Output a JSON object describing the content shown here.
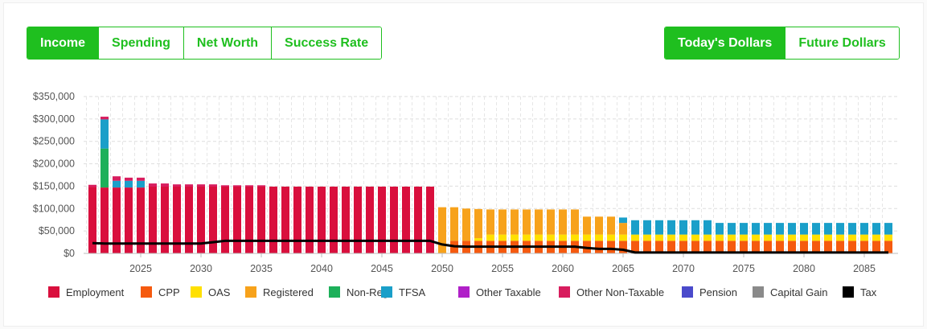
{
  "view_tabs": [
    {
      "label": "Income",
      "active": true
    },
    {
      "label": "Spending",
      "active": false
    },
    {
      "label": "Net Worth",
      "active": false
    },
    {
      "label": "Success Rate",
      "active": false
    }
  ],
  "dollar_tabs": [
    {
      "label": "Today's Dollars",
      "active": true
    },
    {
      "label": "Future Dollars",
      "active": false
    }
  ],
  "colors": {
    "accent": "#1fbf1f",
    "Employment": "#d90f3d",
    "CPP": "#f55a0f",
    "OAS": "#ffe000",
    "Registered": "#f7a21b",
    "Non-Reg": "#1db05a",
    "TFSA": "#1a9fc9",
    "Other Taxable": "#b020c8",
    "Other Non-Taxable": "#d81d5e",
    "Pension": "#4a4acb",
    "Capital Gain": "#8a8a8a",
    "Tax": "#000000"
  },
  "chart_data": {
    "type": "bar",
    "stacked": true,
    "x_start": 2021,
    "x_end": 2087,
    "xticks": [
      2025,
      2030,
      2035,
      2040,
      2045,
      2050,
      2055,
      2060,
      2065,
      2070,
      2075,
      2080,
      2085
    ],
    "ylim": [
      0,
      350000
    ],
    "yticks": [
      "$0",
      "$50,000",
      "$100,000",
      "$150,000",
      "$200,000",
      "$250,000",
      "$300,000",
      "$350,000"
    ],
    "grid": true,
    "legend_position": "bottom",
    "legend": [
      "Employment",
      "CPP",
      "OAS",
      "Registered",
      "Non-Reg",
      "TFSA",
      "Other Taxable",
      "Other Non-Taxable",
      "Pension",
      "Capital Gain",
      "Tax"
    ],
    "series": [
      {
        "name": "Employment",
        "values": [
          148000,
          147000,
          147000,
          147000,
          147000,
          149000,
          149000,
          149000,
          149000,
          149000,
          149000,
          149000,
          149000,
          149000,
          149000,
          149000,
          149000,
          149000,
          149000,
          149000,
          149000,
          149000,
          149000,
          149000,
          149000,
          149000,
          149000,
          149000,
          149000,
          0,
          0,
          0,
          0,
          0,
          0,
          0,
          0,
          0,
          0,
          0,
          0,
          0,
          0,
          0,
          0,
          0,
          0,
          0,
          0,
          0,
          0,
          0,
          0,
          0,
          0,
          0,
          0,
          0,
          0,
          0,
          0,
          0,
          0,
          0,
          0,
          0,
          0
        ]
      },
      {
        "name": "CPP",
        "values": [
          0,
          0,
          0,
          0,
          0,
          0,
          0,
          0,
          0,
          0,
          0,
          0,
          0,
          0,
          0,
          0,
          0,
          0,
          0,
          0,
          0,
          0,
          0,
          0,
          0,
          0,
          0,
          0,
          0,
          0,
          28000,
          28000,
          28000,
          28000,
          28000,
          28000,
          28000,
          28000,
          28000,
          28000,
          28000,
          28000,
          28000,
          28000,
          28000,
          28000,
          28000,
          28000,
          28000,
          28000,
          28000,
          28000,
          28000,
          28000,
          28000,
          28000,
          28000,
          28000,
          28000,
          28000,
          28000,
          28000,
          28000,
          28000,
          28000,
          28000,
          28000
        ]
      },
      {
        "name": "OAS",
        "values": [
          0,
          0,
          0,
          0,
          0,
          0,
          0,
          0,
          0,
          0,
          0,
          0,
          0,
          0,
          0,
          0,
          0,
          0,
          0,
          0,
          0,
          0,
          0,
          0,
          0,
          0,
          0,
          0,
          0,
          0,
          0,
          0,
          6000,
          14000,
          14000,
          14000,
          14000,
          14000,
          14000,
          14000,
          14000,
          14000,
          14000,
          14000,
          14000,
          14000,
          14000,
          14000,
          14000,
          14000,
          14000,
          14000,
          14000,
          14000,
          14000,
          14000,
          14000,
          14000,
          14000,
          14000,
          14000,
          14000,
          14000,
          14000,
          14000,
          14000,
          14000
        ]
      },
      {
        "name": "Registered",
        "values": [
          0,
          0,
          0,
          0,
          0,
          0,
          0,
          0,
          0,
          0,
          0,
          0,
          0,
          0,
          0,
          0,
          0,
          0,
          0,
          0,
          0,
          0,
          0,
          0,
          0,
          0,
          0,
          0,
          0,
          103000,
          75000,
          72000,
          65000,
          56000,
          56000,
          56000,
          56000,
          56000,
          56000,
          56000,
          56000,
          40000,
          40000,
          40000,
          26000,
          0,
          0,
          0,
          0,
          0,
          0,
          0,
          0,
          0,
          0,
          0,
          0,
          0,
          0,
          0,
          0,
          0,
          0,
          0,
          0,
          0,
          0
        ]
      },
      {
        "name": "Non-Reg",
        "values": [
          0,
          87000,
          0,
          0,
          0,
          0,
          0,
          0,
          0,
          0,
          0,
          0,
          0,
          0,
          0,
          0,
          0,
          0,
          0,
          0,
          0,
          0,
          0,
          0,
          0,
          0,
          0,
          0,
          0,
          0,
          0,
          0,
          0,
          0,
          0,
          0,
          0,
          0,
          0,
          0,
          0,
          0,
          0,
          0,
          0,
          0,
          0,
          0,
          0,
          0,
          0,
          0,
          0,
          0,
          0,
          0,
          0,
          0,
          0,
          0,
          0,
          0,
          0,
          0,
          0,
          0,
          0
        ]
      },
      {
        "name": "TFSA",
        "values": [
          0,
          65000,
          15000,
          15000,
          15000,
          0,
          0,
          0,
          0,
          0,
          0,
          0,
          0,
          0,
          0,
          0,
          0,
          0,
          0,
          0,
          0,
          0,
          0,
          0,
          0,
          0,
          0,
          0,
          0,
          0,
          0,
          0,
          0,
          0,
          0,
          0,
          0,
          0,
          0,
          0,
          0,
          0,
          0,
          0,
          12000,
          32000,
          32000,
          32000,
          32000,
          32000,
          32000,
          32000,
          26000,
          26000,
          26000,
          26000,
          26000,
          26000,
          26000,
          26000,
          26000,
          26000,
          26000,
          26000,
          26000,
          26000,
          26000
        ]
      },
      {
        "name": "Other Taxable",
        "values": [
          0,
          0,
          0,
          0,
          0,
          0,
          0,
          0,
          0,
          0,
          0,
          0,
          0,
          0,
          0,
          0,
          0,
          0,
          0,
          0,
          0,
          0,
          0,
          0,
          0,
          0,
          0,
          0,
          0,
          0,
          0,
          0,
          0,
          0,
          0,
          0,
          0,
          0,
          0,
          0,
          0,
          0,
          0,
          0,
          0,
          0,
          0,
          0,
          0,
          0,
          0,
          0,
          0,
          0,
          0,
          0,
          0,
          0,
          0,
          0,
          0,
          0,
          0,
          0,
          0,
          0,
          0
        ]
      },
      {
        "name": "Other Non-Taxable",
        "values": [
          5000,
          6000,
          10000,
          7000,
          7000,
          7000,
          7000,
          5000,
          5000,
          5000,
          5000,
          3000,
          3000,
          3000,
          3000,
          0,
          0,
          0,
          0,
          0,
          0,
          0,
          0,
          0,
          0,
          0,
          0,
          0,
          0,
          0,
          0,
          0,
          0,
          0,
          0,
          0,
          0,
          0,
          0,
          0,
          0,
          0,
          0,
          0,
          0,
          0,
          0,
          0,
          0,
          0,
          0,
          0,
          0,
          0,
          0,
          0,
          0,
          0,
          0,
          0,
          0,
          0,
          0,
          0,
          0,
          0,
          0
        ]
      },
      {
        "name": "Pension",
        "values": [
          0,
          0,
          0,
          0,
          0,
          0,
          0,
          0,
          0,
          0,
          0,
          0,
          0,
          0,
          0,
          0,
          0,
          0,
          0,
          0,
          0,
          0,
          0,
          0,
          0,
          0,
          0,
          0,
          0,
          0,
          0,
          0,
          0,
          0,
          0,
          0,
          0,
          0,
          0,
          0,
          0,
          0,
          0,
          0,
          0,
          0,
          0,
          0,
          0,
          0,
          0,
          0,
          0,
          0,
          0,
          0,
          0,
          0,
          0,
          0,
          0,
          0,
          0,
          0,
          0,
          0,
          0
        ]
      },
      {
        "name": "Capital Gain",
        "values": [
          0,
          0,
          0,
          0,
          0,
          0,
          0,
          0,
          0,
          0,
          0,
          0,
          0,
          0,
          0,
          0,
          0,
          0,
          0,
          0,
          0,
          0,
          0,
          0,
          0,
          0,
          0,
          0,
          0,
          0,
          0,
          0,
          0,
          0,
          0,
          0,
          0,
          0,
          0,
          0,
          0,
          0,
          0,
          0,
          0,
          0,
          0,
          0,
          0,
          0,
          0,
          0,
          0,
          0,
          0,
          0,
          0,
          0,
          0,
          0,
          0,
          0,
          0,
          0,
          0,
          0,
          0
        ]
      }
    ],
    "tax_line": [
      23000,
      22000,
      22000,
      22000,
      22000,
      22000,
      22000,
      22000,
      22000,
      22000,
      25000,
      28000,
      28000,
      28000,
      28000,
      28000,
      28000,
      28000,
      28000,
      28000,
      28000,
      28000,
      28000,
      28000,
      28000,
      28000,
      28000,
      28000,
      28000,
      20000,
      16000,
      15000,
      15000,
      15000,
      15000,
      15000,
      15000,
      15000,
      15000,
      15000,
      15000,
      12000,
      10000,
      10000,
      8000,
      2000,
      2000,
      2000,
      2000,
      2000,
      2000,
      2000,
      2000,
      2000,
      2000,
      2000,
      2000,
      2000,
      2000,
      2000,
      2000,
      2000,
      2000,
      2000,
      2000,
      2000,
      2000
    ]
  }
}
